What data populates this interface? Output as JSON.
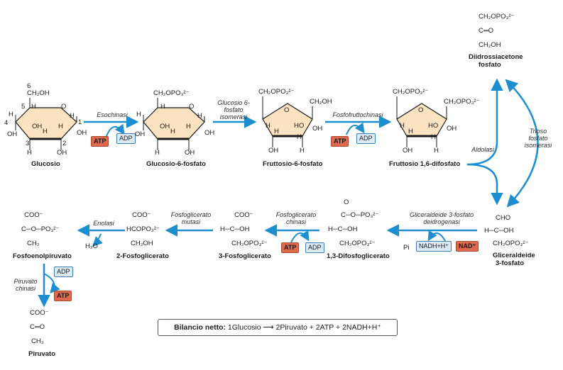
{
  "colors": {
    "arrow": "#1d8fd0",
    "atp_fill": "#e0694d",
    "adp_fill": "#dce9f6",
    "ring_fill": "#fbe2c0"
  },
  "compounds": {
    "glucosio": "Glucosio",
    "glucosio_6_fosfato": "Glucosio-6-fosfato",
    "fruttosio_6_fosfato": "Fruttosio-6-fosfato",
    "fruttosio_16_difosfato": "Fruttosio 1,6-difosfato",
    "diidrossiacetone_1": "Diidrossiacetone",
    "diidrossiacetone_2": "fosfato",
    "gliceraldeide_1": "Gliceraldeide",
    "gliceraldeide_2": "3-fosfato",
    "difosfoglicerato": "1,3-Difosfoglicerato",
    "fosfoglicerato_3": "3-Fosfoglicerato",
    "fosfoglicerato_2": "2-Fosfoglicerato",
    "fosfoenolpiruvato": "Fosfoenolpiruvato",
    "piruvato": "Piruvato"
  },
  "enzymes": {
    "esochinasi": "Esochinasi",
    "glucosio_isomerasi": "Glucosio 6-fosfato isomerasi",
    "fosfofruttochinasi": "Fosfofruttochinasi",
    "aldolasi": "Aldolasi",
    "trioso_isomerasi": "Trioso fosfato isomerasi",
    "gliceraldeide_deidrogenasi": "Gliceraldeide 3-fosfato deidrogenasi",
    "fosfoglicerato_chinasi": "Fosfoglicerato chinasi",
    "fosfoglicerato_mutasi": "Fosfoglicerato mutasi",
    "enolasi": "Enolasi",
    "piruvato_chinasi": "Piruvato chinasi"
  },
  "cofactors": {
    "atp": "ATP",
    "adp": "ADP",
    "pi": "Pi",
    "nadh": "NADH+H⁺",
    "nad": "NAD⁺",
    "h2o": "H₂O"
  },
  "ring_labels": {
    "n6": "6",
    "n5": "5",
    "n4": "4",
    "n3": "3",
    "n2": "2",
    "n1": "1",
    "ch2oh": "CH₂OH",
    "ch2opo3": "CH₂OPO₃²⁻",
    "h": "H",
    "oh": "OH",
    "ho": "HO",
    "o": "O"
  },
  "formulas": {
    "dhap_1": "CH₂OPO₃²⁻",
    "dhap_2": "C═O",
    "dhap_3": "CH₂OH",
    "gap_1": "CHO",
    "gap_2": "H─C─OH",
    "gap_3": "CH₂OPO₃²⁻",
    "bpg_1": "O",
    "bpg_2": "C─O─PO₃²⁻",
    "bpg_3": "H─C─OH",
    "bpg_4": "CH₂OPO₃²⁻",
    "pg3_1": "COO⁻",
    "pg3_2": "H─C─OH",
    "pg3_3": "CH₂OPO₃²⁻",
    "pg2_1": "COO⁻",
    "pg2_2": "HCOPO₃²⁻",
    "pg2_3": "CH₂OH",
    "pep_1": "COO⁻",
    "pep_2": "C─O─PO₃²⁻",
    "pep_3": "CH₂",
    "pyr_1": "COO⁻",
    "pyr_2": "C═O",
    "pyr_3": "CH₃"
  },
  "balance": {
    "label": "Bilancio netto:",
    "equation": "1Glucosio ⟶ 2Piruvato + 2ATP + 2NADH+H⁺"
  }
}
